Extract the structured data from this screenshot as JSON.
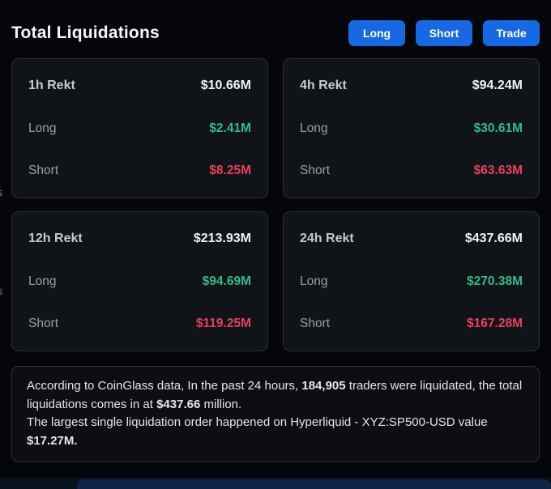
{
  "header": {
    "title": "Total Liquidations",
    "buttons": [
      "Long",
      "Short",
      "Trade"
    ]
  },
  "colors": {
    "accent_blue": "#1668e3",
    "long_green": "#2ebd85",
    "short_red": "#e8415c",
    "card_background": "#101318",
    "page_background": "#050609"
  },
  "cards": [
    {
      "title": "1h Rekt",
      "total": "$10.66M",
      "rows": [
        {
          "label": "Long",
          "value": "$2.41M"
        },
        {
          "label": "Short",
          "value": "$8.25M"
        }
      ]
    },
    {
      "title": "4h Rekt",
      "total": "$94.24M",
      "rows": [
        {
          "label": "Long",
          "value": "$30.61M"
        },
        {
          "label": "Short",
          "value": "$63.63M"
        }
      ]
    },
    {
      "title": "12h Rekt",
      "total": "$213.93M",
      "rows": [
        {
          "label": "Long",
          "value": "$94.69M"
        },
        {
          "label": "Short",
          "value": "$119.25M"
        }
      ]
    },
    {
      "title": "24h Rekt",
      "total": "$437.66M",
      "rows": [
        {
          "label": "Long",
          "value": "$270.38M"
        },
        {
          "label": "Short",
          "value": "$167.28M"
        }
      ]
    }
  ],
  "summary": {
    "paragraphs": [
      {
        "segments": [
          {
            "t": "According to CoinGlass data, In the past 24 hours, ",
            "b": false
          },
          {
            "t": "184,905",
            "b": true
          },
          {
            "t": " traders were liquidated, the total liquidations comes in at ",
            "b": false
          },
          {
            "t": "$437.66",
            "b": true
          },
          {
            "t": " million.",
            "b": false
          }
        ]
      },
      {
        "segments": [
          {
            "t": "The largest single liquidation order happened on Hyperliquid - XYZ:SP500-USD value ",
            "b": false
          },
          {
            "t": "$17.27M.",
            "b": true
          }
        ]
      }
    ]
  },
  "edge_fragments": [
    "s",
    "s"
  ]
}
